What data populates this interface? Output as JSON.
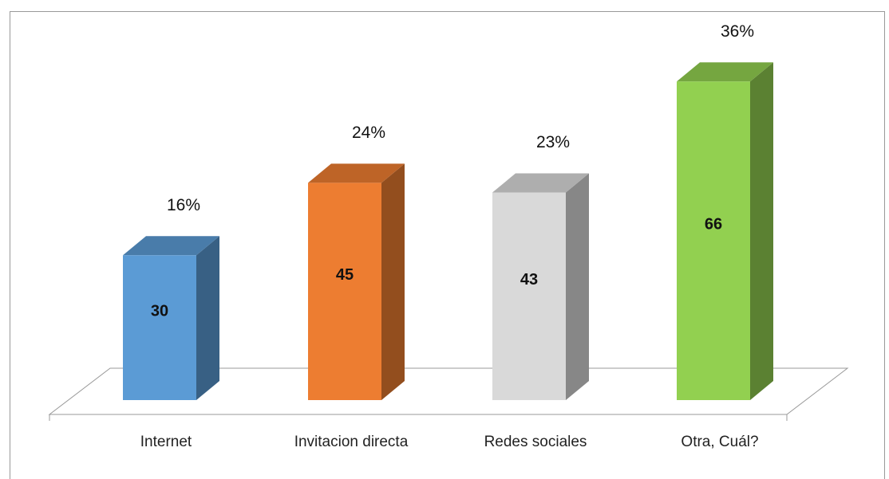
{
  "chart_data": {
    "type": "bar3d",
    "categories": [
      "Internet",
      "Invitacion directa",
      "Redes sociales",
      "Otra, Cuál?"
    ],
    "values": [
      30,
      45,
      43,
      66
    ],
    "percent_labels": [
      "16%",
      "24%",
      "23%",
      "36%"
    ],
    "colors": [
      "#5b9bd5",
      "#ed7d31",
      "#d9d9d9",
      "#92d050"
    ],
    "ylim": [
      0,
      70
    ]
  }
}
